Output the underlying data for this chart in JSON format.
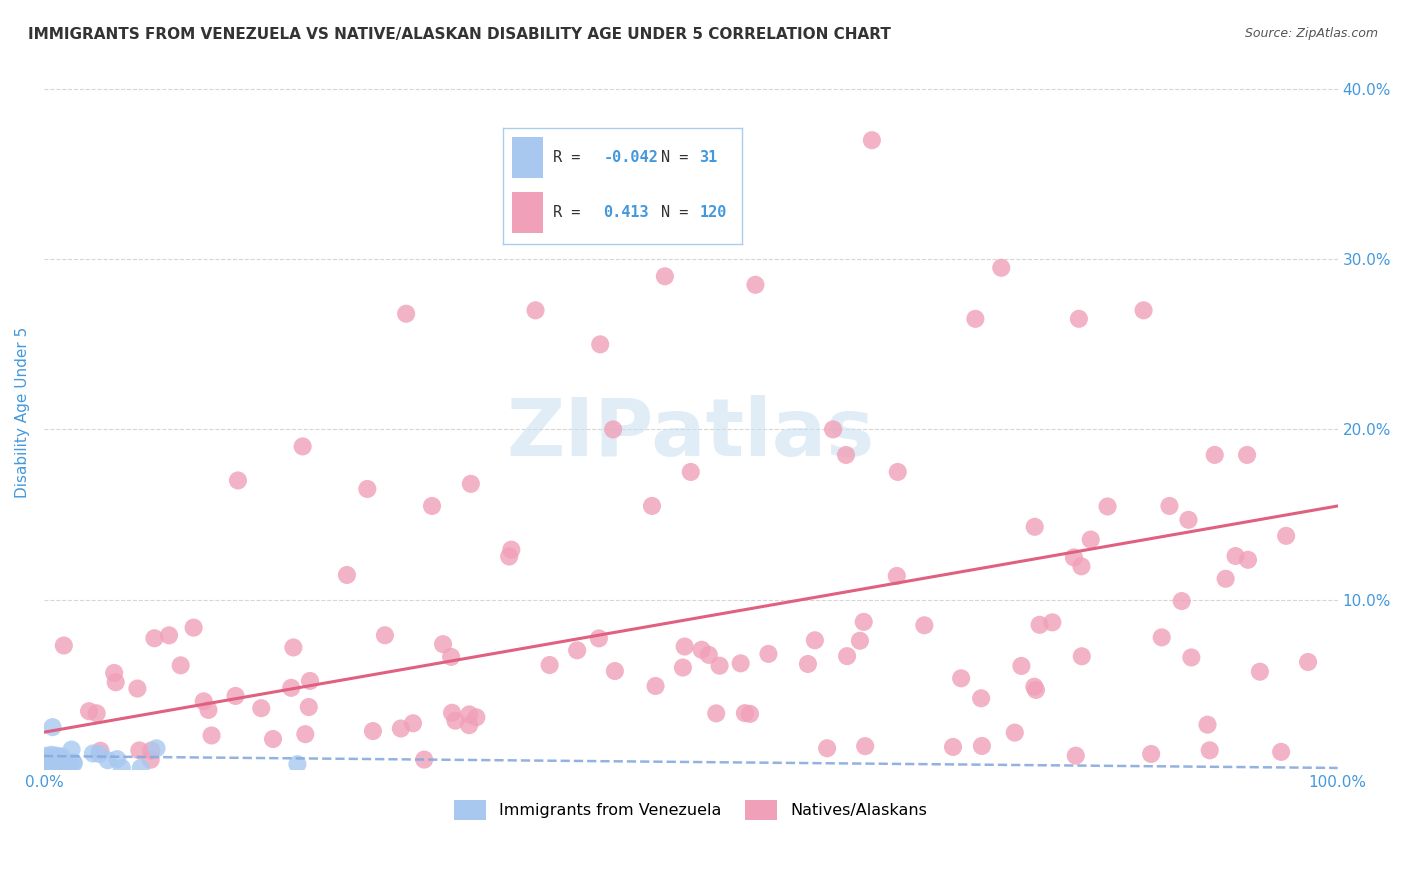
{
  "title": "IMMIGRANTS FROM VENEZUELA VS NATIVE/ALASKAN DISABILITY AGE UNDER 5 CORRELATION CHART",
  "source": "Source: ZipAtlas.com",
  "ylabel": "Disability Age Under 5",
  "xmin": 0.0,
  "xmax": 1.0,
  "ymin": 0.0,
  "ymax": 0.42,
  "legend1_R": "-0.042",
  "legend1_N": "31",
  "legend2_R": "0.413",
  "legend2_N": "120",
  "blue_color": "#a8c8f0",
  "pink_color": "#f0a0b8",
  "blue_line_color": "#88aadd",
  "pink_line_color": "#e06080",
  "grid_color": "#cccccc",
  "title_color": "#333333",
  "axis_label_color": "#4499dd",
  "watermark_color": "#c8dff0",
  "label_color_blue": "#4499dd",
  "legend_box_color": "#ddeeff",
  "pink_trend_y0": 0.022,
  "pink_trend_y1": 0.155,
  "blue_trend_y0": 0.008,
  "blue_trend_y1": 0.001
}
